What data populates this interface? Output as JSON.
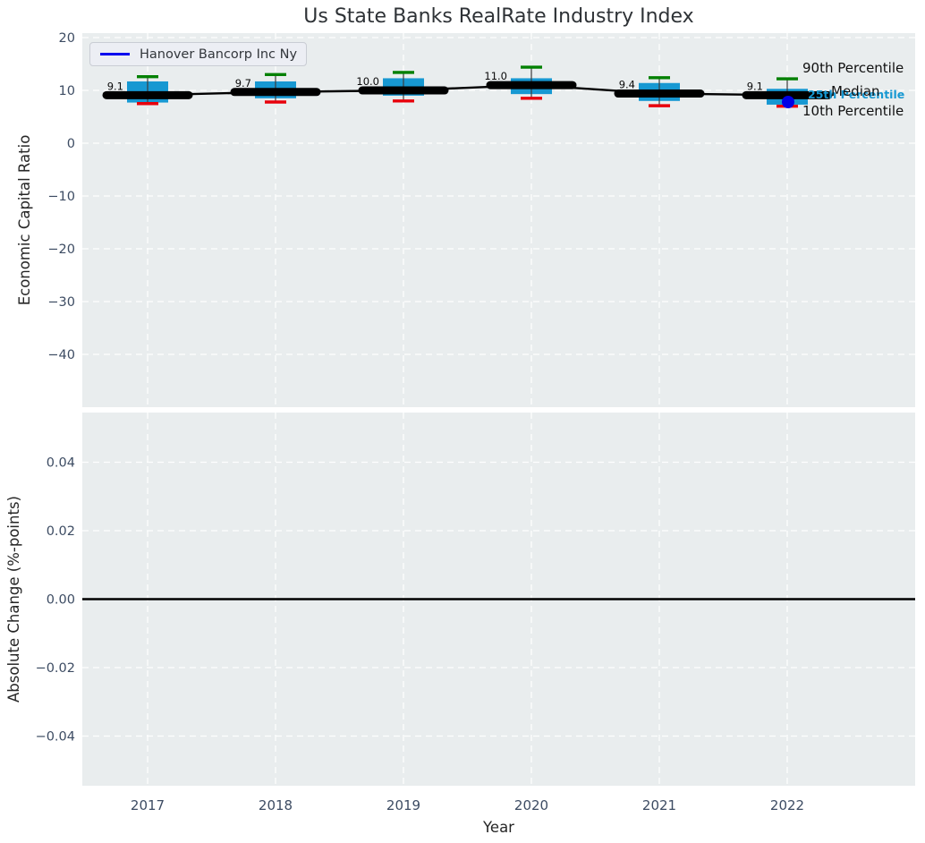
{
  "title": "Us State Banks RealRate Industry Index",
  "legend": {
    "series_label": "Hanover Bancorp Inc Ny",
    "line_color": "#0000ee"
  },
  "annotations": {
    "p90_label": "90th Percentile",
    "median_label": "Median",
    "p25_label": "25th Percentile",
    "p10_label": "10th Percentile"
  },
  "colors": {
    "axes_bg": "#e9edee",
    "grid": "#ffffff",
    "box_fill": "#1798d2",
    "p90_cap": "#008000",
    "p10_cap": "#e8000b",
    "whisker": "#3c3c3c",
    "median_line": "#000000",
    "hanover_point": "#0000e6",
    "tick_label": "#3d4c63",
    "axis_label": "#262626",
    "title": "#2e3236",
    "zero_line": "#000000"
  },
  "chart_data": [
    {
      "type": "boxplot",
      "title": "Us State Banks RealRate Industry Index",
      "xlabel": "Year",
      "ylabel": "Economic Capital Ratio",
      "x_categories": [
        "2017",
        "2018",
        "2019",
        "2020",
        "2021",
        "2022"
      ],
      "years": [
        2017,
        2018,
        2019,
        2020,
        2021,
        2022
      ],
      "ytick_labels": [
        "20",
        "10",
        "0",
        "−10",
        "−20",
        "−30",
        "−40"
      ],
      "ytick_values": [
        20,
        10,
        0,
        -10,
        -20,
        -30,
        -40
      ],
      "ylim": [
        -50.0,
        20.85
      ],
      "grid": true,
      "legend_position": "upper left",
      "median_series": {
        "name": "Industry Median",
        "values": [
          9.1,
          9.7,
          10.0,
          11.0,
          9.4,
          9.1
        ]
      },
      "median_point_labels": [
        "9.1",
        "9.7",
        "10.0",
        "11.0",
        "9.4",
        "9.1"
      ],
      "boxes": [
        {
          "year": 2017,
          "p90": 12.6,
          "q3": 11.7,
          "median": 9.1,
          "q1": 7.7,
          "p10": 7.5
        },
        {
          "year": 2018,
          "p90": 13.0,
          "q3": 11.7,
          "median": 9.7,
          "q1": 8.5,
          "p10": 7.8
        },
        {
          "year": 2019,
          "p90": 13.4,
          "q3": 12.3,
          "median": 10.0,
          "q1": 9.0,
          "p10": 8.0
        },
        {
          "year": 2020,
          "p90": 14.4,
          "q3": 12.3,
          "median": 11.0,
          "q1": 9.3,
          "p10": 8.5
        },
        {
          "year": 2021,
          "p90": 12.4,
          "q3": 11.4,
          "median": 9.4,
          "q1": 8.0,
          "p10": 7.1
        },
        {
          "year": 2022,
          "p90": 12.2,
          "q3": 10.3,
          "median": 9.1,
          "q1": 7.3,
          "p10": 7.0
        }
      ],
      "hanover_series": {
        "name": "Hanover Bancorp Inc Ny",
        "points": [
          {
            "year": 2022,
            "value": 7.8
          }
        ]
      }
    },
    {
      "type": "line",
      "xlabel": "Year",
      "ylabel": "Absolute Change (%-points)",
      "x_categories": [
        "2017",
        "2018",
        "2019",
        "2020",
        "2021",
        "2022"
      ],
      "ytick_labels": [
        "0.04",
        "0.02",
        "0.00",
        "−0.02",
        "−0.04"
      ],
      "ytick_values": [
        0.04,
        0.02,
        0.0,
        -0.02,
        -0.04
      ],
      "ylim": [
        -0.0545,
        0.0545
      ],
      "grid": true,
      "zero_line": 0.0,
      "series": []
    }
  ]
}
